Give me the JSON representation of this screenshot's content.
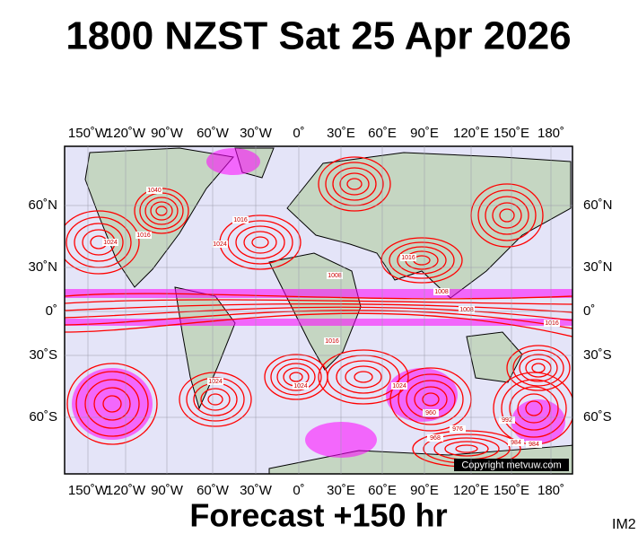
{
  "title": "1800 NZST Sat 25 Apr 2026",
  "footer": "Forecast +150 hr",
  "corner_label": "IM2",
  "copyright": "Copyright metvuw.com",
  "lon_labels": [
    "150˚W",
    "120˚W",
    "90˚W",
    "60˚W",
    "30˚W",
    "0˚",
    "30˚E",
    "60˚E",
    "90˚E",
    "120˚E",
    "150˚E",
    "180˚"
  ],
  "lat_labels": [
    "60˚N",
    "30˚N",
    "0˚",
    "30˚S",
    "60˚S"
  ],
  "isobar_labels": [
    "1040",
    "1024",
    "1016",
    "1024",
    "1016",
    "1008",
    "1016",
    "1008",
    "1016",
    "1024",
    "1024",
    "1024",
    "992",
    "984",
    "976",
    "968",
    "960",
    "984",
    "1016",
    "1008"
  ]
}
